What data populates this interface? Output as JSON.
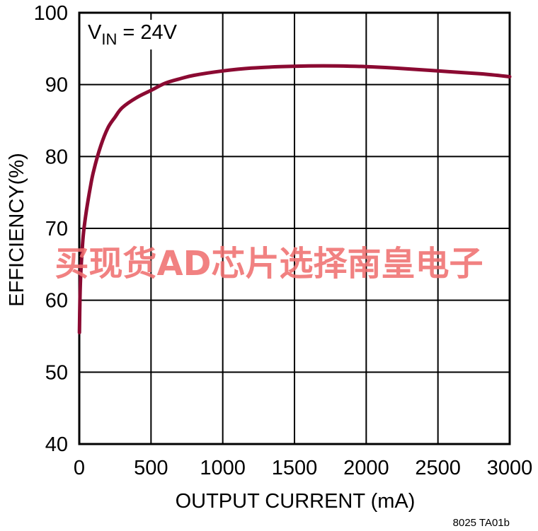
{
  "chart_data": {
    "type": "line",
    "annotation": {
      "main": "V",
      "sub": "IN",
      "rest": " = 24V"
    },
    "xlabel": "OUTPUT CURRENT (mA)",
    "ylabel": "EFFICIENCY(%)",
    "xlim": [
      0,
      3000
    ],
    "ylim": [
      40,
      100
    ],
    "xticks": [
      0,
      500,
      1000,
      1500,
      2000,
      2500,
      3000
    ],
    "yticks": [
      40,
      50,
      60,
      70,
      80,
      90,
      100
    ],
    "grid": true,
    "series": [
      {
        "color": "#8b0a32",
        "x": [
          1,
          5,
          10,
          20,
          30,
          50,
          75,
          100,
          150,
          200,
          250,
          300,
          400,
          500,
          600,
          700,
          800,
          1000,
          1200,
          1400,
          1600,
          1800,
          2000,
          2200,
          2500,
          2800,
          3000
        ],
        "y": [
          55.5,
          60.5,
          63.5,
          67,
          69.5,
          72.5,
          75.5,
          78,
          81.5,
          84,
          85.5,
          86.8,
          88.2,
          89.2,
          90.2,
          90.8,
          91.3,
          91.9,
          92.3,
          92.5,
          92.6,
          92.6,
          92.5,
          92.3,
          91.9,
          91.5,
          91.1
        ]
      }
    ]
  },
  "watermark": "买现货AD芯片选择南皇电子",
  "figure_id": "8025 TA01b"
}
